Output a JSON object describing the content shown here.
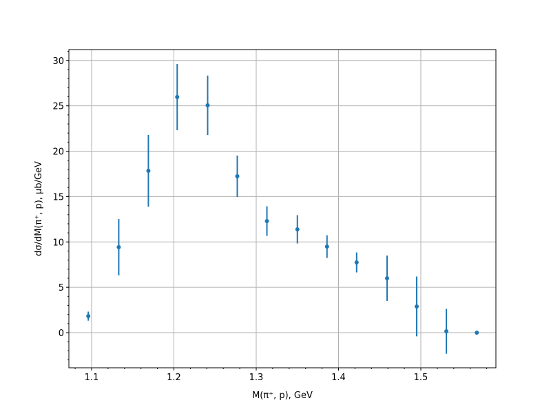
{
  "chart_data": {
    "type": "scatter",
    "subtype": "errorbar",
    "title": "",
    "xlabel": "M(π⁺, p), GeV",
    "ylabel": "dσ/dM(π⁺, p), μb/GeV",
    "xlim": [
      1.0724,
      1.5912
    ],
    "ylim": [
      -3.87,
      31.2
    ],
    "xticks": [
      1.1,
      1.2,
      1.3,
      1.4,
      1.5
    ],
    "xtick_labels": [
      "1.1",
      "1.2",
      "1.3",
      "1.4",
      "1.5"
    ],
    "yticks": [
      0,
      5,
      10,
      15,
      20,
      25,
      30
    ],
    "ytick_labels": [
      "0",
      "5",
      "10",
      "15",
      "20",
      "25",
      "30"
    ],
    "x_minor_step": 0.02,
    "y_minor_step": 1,
    "grid": true,
    "color": "#1f77b4",
    "x": [
      1.096,
      1.133,
      1.169,
      1.204,
      1.241,
      1.277,
      1.313,
      1.35,
      1.386,
      1.422,
      1.459,
      1.495,
      1.531,
      1.568
    ],
    "y": [
      1.82,
      9.42,
      17.84,
      25.97,
      25.06,
      17.24,
      12.3,
      11.39,
      9.49,
      7.74,
      6.0,
      2.89,
      0.15,
      0.0
    ],
    "yerr": [
      0.5,
      3.1,
      3.95,
      3.65,
      3.27,
      2.28,
      1.63,
      1.56,
      1.25,
      1.1,
      2.5,
      3.3,
      2.47,
      0.05
    ]
  }
}
